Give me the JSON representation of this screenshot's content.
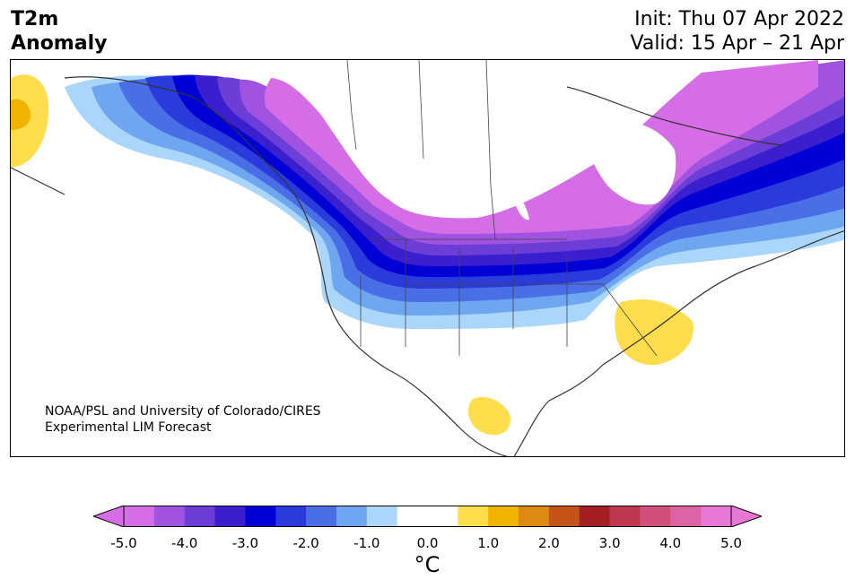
{
  "header": {
    "title_line1": "T2m",
    "title_line2": "Anomaly",
    "init": "Init: Thu 07 Apr 2022",
    "valid": "Valid: 15 Apr – 21 Apr"
  },
  "map": {
    "credit_line1": "NOAA/PSL and University of Colorado/CIRES",
    "credit_line2": "Experimental LIM Forecast",
    "region": "North America",
    "coastline_color": "#333333",
    "background": "#ffffff"
  },
  "colorbar": {
    "unit": "°C",
    "ticks": [
      "-5.0",
      "-4.0",
      "-3.0",
      "-2.0",
      "-1.0",
      "0.0",
      "1.0",
      "2.0",
      "3.0",
      "4.0",
      "5.0"
    ],
    "colors": [
      "#d56ee6",
      "#a052e0",
      "#6c3ed8",
      "#3a1fcf",
      "#0000d6",
      "#2a3bdb",
      "#4a6ee6",
      "#6ea6f0",
      "#aad6fb",
      "#ffffff",
      "#ffffff",
      "#ffdd4d",
      "#f0b400",
      "#dd8a10",
      "#c4541a",
      "#a32020",
      "#c0384f",
      "#d0507a",
      "#de62a6",
      "#e878d6"
    ],
    "under_color": "#d56ee6",
    "over_color": "#e878d6"
  }
}
